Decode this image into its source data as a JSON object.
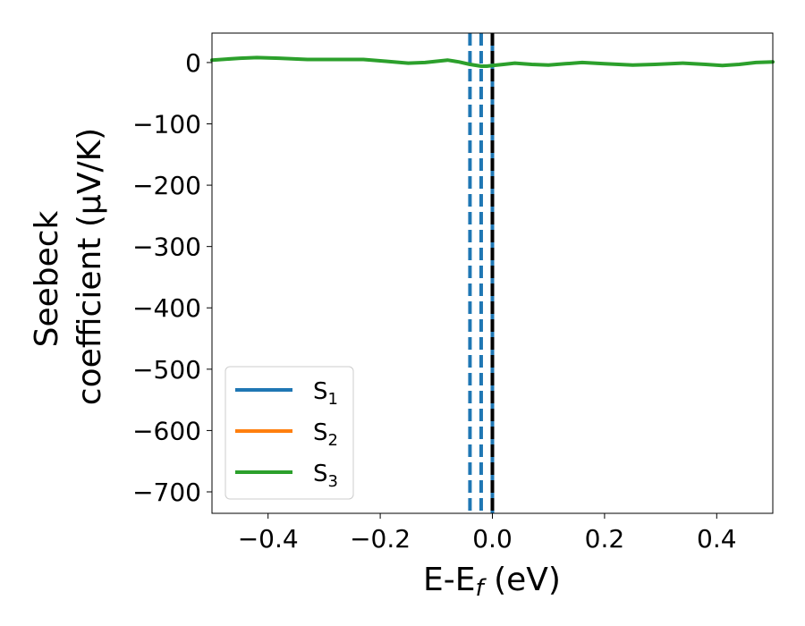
{
  "chart_data": {
    "type": "line",
    "xlabel": {
      "main": "E-E",
      "sub": "f",
      "unit": " (eV)"
    },
    "ylabel": {
      "line1": "Seebeck",
      "line2": "coefficient  (μV/K)"
    },
    "xlim": [
      -0.5,
      0.5
    ],
    "ylim": [
      -735,
      48
    ],
    "xticks": [
      -0.4,
      -0.2,
      0.0,
      0.2,
      0.4
    ],
    "xtick_labels": [
      "−0.4",
      "−0.2",
      "0.0",
      "0.2",
      "0.4"
    ],
    "yticks": [
      0,
      -100,
      -200,
      -300,
      -400,
      -500,
      -600,
      -700
    ],
    "ytick_labels": [
      "0",
      "−100",
      "−200",
      "−300",
      "−400",
      "−500",
      "−600",
      "−700"
    ],
    "grid": false,
    "legend_position": "lower-left",
    "series": [
      {
        "name": "S",
        "sub": "1",
        "color": "#1f77b4",
        "x": [],
        "y": []
      },
      {
        "name": "S",
        "sub": "2",
        "color": "#ff7f0e",
        "x": [],
        "y": []
      },
      {
        "name": "S",
        "sub": "3",
        "color": "#2ca02c",
        "x": [
          -0.5,
          -0.45,
          -0.42,
          -0.38,
          -0.33,
          -0.28,
          -0.23,
          -0.19,
          -0.15,
          -0.12,
          -0.08,
          -0.06,
          -0.04,
          -0.02,
          -0.01,
          0.0,
          0.02,
          0.04,
          0.07,
          0.1,
          0.13,
          0.16,
          0.2,
          0.25,
          0.29,
          0.34,
          0.38,
          0.41,
          0.44,
          0.47,
          0.5
        ],
        "y": [
          4,
          7,
          8,
          7,
          5,
          5,
          5,
          2,
          -1,
          0,
          4,
          1,
          -3,
          -6,
          -6,
          -5,
          -3,
          -1,
          -3,
          -4,
          -2,
          0,
          -2,
          -4,
          -3,
          -1,
          -3,
          -5,
          -3,
          0,
          1
        ]
      }
    ],
    "vlines": [
      {
        "x": -0.04,
        "color": "#1f77b4",
        "style": "dashed"
      },
      {
        "x": -0.02,
        "color": "#1f77b4",
        "style": "dashed"
      },
      {
        "x": 0.0,
        "color": "#1f77b4",
        "style": "solid"
      },
      {
        "x": 0.0,
        "color": "#000000",
        "style": "dashed"
      }
    ]
  }
}
